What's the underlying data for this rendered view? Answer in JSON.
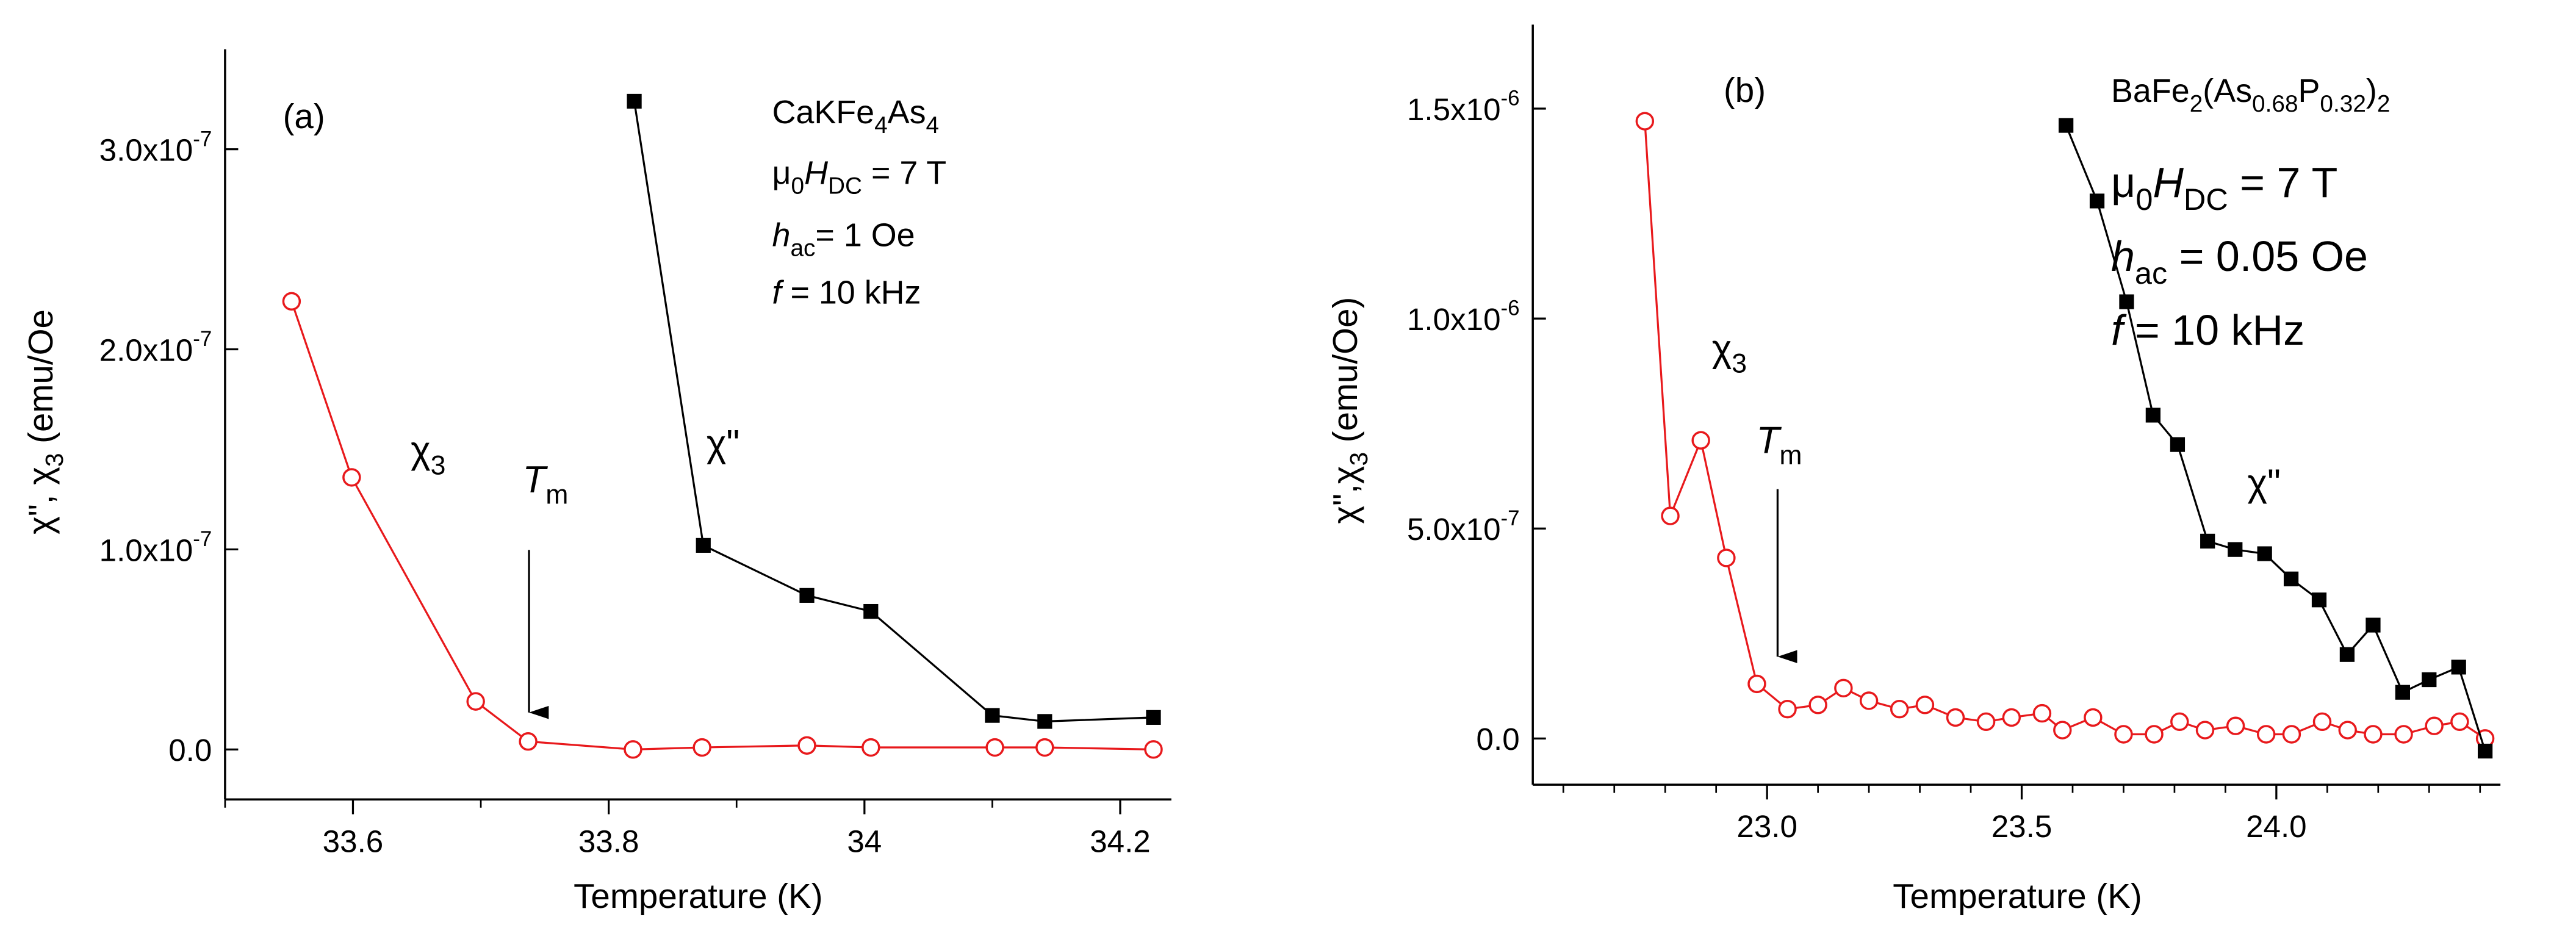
{
  "chart_data": [
    {
      "type": "line",
      "title": "(a)",
      "xlabel": "Temperature (K)",
      "ylabel": [
        {
          "t": "χ\", χ"
        },
        {
          "t": "3",
          "sub": true
        },
        {
          "t": " (emu/Oe"
        }
      ],
      "xlim": [
        33.5,
        34.24
      ],
      "xticks": [
        33.6,
        33.8,
        34.0,
        34.2
      ],
      "xminorticks": [
        33.5,
        33.7,
        33.9,
        34.1
      ],
      "ylim": [
        -2.5e-08,
        3.5e-07
      ],
      "yticks": [
        {
          "value": 0,
          "label": "0.0"
        },
        {
          "value": 1e-07,
          "label": "1.0x10-7"
        },
        {
          "value": 2e-07,
          "label": "2.0x10-7"
        },
        {
          "value": 3e-07,
          "label": "3.0x10-7"
        }
      ],
      "series": [
        {
          "name": "χ3",
          "color": "#e8191c",
          "marker": "open-circle",
          "x": [
            33.552,
            33.599,
            33.696,
            33.737,
            33.819,
            33.873,
            33.955,
            34.005,
            34.102,
            34.141,
            34.226
          ],
          "values": [
            2.24e-07,
            1.36e-07,
            2.4e-08,
            4e-09,
            0,
            1e-09,
            2e-09,
            1e-09,
            1e-09,
            1e-09,
            0
          ]
        },
        {
          "name": "χ\"",
          "color": "#000000",
          "marker": "filled-square",
          "x": [
            33.82,
            33.874,
            33.955,
            34.005,
            34.1,
            34.141,
            34.226
          ],
          "values": [
            3.24e-07,
            1.02e-07,
            7.7e-08,
            6.9e-08,
            1.7e-08,
            1.4e-08,
            1.6e-08
          ]
        }
      ],
      "annotations": [
        [
          {
            "t": "CaKFe"
          },
          {
            "t": "4",
            "sub": true
          },
          {
            "t": "As"
          },
          {
            "t": "4",
            "sub": true
          }
        ],
        [
          {
            "t": "μ"
          },
          {
            "t": "0",
            "sub": true
          },
          {
            "t": "H",
            "it": true
          },
          {
            "t": "DC",
            "sub": true
          },
          {
            "t": " = 7 T"
          }
        ],
        [
          {
            "t": "h",
            "it": true
          },
          {
            "t": "ac",
            "sub": true
          },
          {
            "t": "= 1 Oe"
          }
        ],
        [
          {
            "t": "f",
            "it": true
          },
          {
            "t": " = 10 kHz"
          }
        ]
      ],
      "series_labels": [
        [
          {
            "t": "χ"
          },
          {
            "t": "3",
            "sub": true
          }
        ],
        [
          {
            "t": "χ\""
          }
        ]
      ],
      "marker_label": [
        {
          "t": "T",
          "it": true
        },
        {
          "t": "m",
          "sub": true
        }
      ]
    },
    {
      "type": "line",
      "title": "(b)",
      "xlabel": "Temperature (K)",
      "ylabel": [
        {
          "t": "χ\",χ"
        },
        {
          "t": "3",
          "sub": true
        },
        {
          "t": " (emu/Oe)"
        }
      ],
      "xlim": [
        22.54,
        24.44
      ],
      "xticks": [
        {
          "value": 23,
          "label": "23.0"
        },
        23.5,
        {
          "value": 24,
          "label": "24.0"
        }
      ],
      "xminorticks": [
        22.6,
        22.7,
        22.8,
        22.9,
        23.1,
        23.2,
        23.3,
        23.4,
        23.6,
        23.7,
        23.8,
        23.9,
        24.1,
        24.2,
        24.3,
        24.4
      ],
      "ylim": [
        -1.1e-07,
        1.7e-06
      ],
      "yticks": [
        {
          "value": 0,
          "label": "0.0"
        },
        {
          "value": 5e-07,
          "label": "5.0x10-7"
        },
        {
          "value": 1e-06,
          "label": "1.0x10-6"
        },
        {
          "value": 1.5e-06,
          "label": "1.5x10-6"
        }
      ],
      "series": [
        {
          "name": "χ3",
          "color": "#e8191c",
          "marker": "open-circle",
          "x": [
            22.76,
            22.81,
            22.87,
            22.92,
            22.98,
            23.04,
            23.1,
            23.15,
            23.2,
            23.26,
            23.31,
            23.37,
            23.43,
            23.48,
            23.54,
            23.58,
            23.64,
            23.7,
            23.76,
            23.81,
            23.86,
            23.92,
            23.98,
            24.03,
            24.09,
            24.14,
            24.19,
            24.25,
            24.31,
            24.36,
            24.41
          ],
          "values": [
            1.47e-06,
            5.3e-07,
            7.1e-07,
            4.3e-07,
            1.3e-07,
            7e-08,
            8e-08,
            1.2e-07,
            9e-08,
            7e-08,
            8e-08,
            5e-08,
            4e-08,
            5e-08,
            6e-08,
            2e-08,
            5e-08,
            1e-08,
            1e-08,
            4e-08,
            2e-08,
            3e-08,
            1e-08,
            1e-08,
            4e-08,
            2e-08,
            1e-08,
            1e-08,
            3e-08,
            4e-08,
            0
          ]
        },
        {
          "name": "χ\"",
          "color": "#000000",
          "marker": "filled-square",
          "x": [
            23.587,
            23.648,
            23.706,
            23.758,
            23.806,
            23.865,
            23.919,
            23.977,
            24.029,
            24.084,
            24.139,
            24.19,
            24.248,
            24.3,
            24.358,
            24.41
          ],
          "values": [
            1.46e-06,
            1.28e-06,
            1.04e-06,
            7.7e-07,
            7e-07,
            4.7e-07,
            4.5e-07,
            4.4e-07,
            3.8e-07,
            3.3e-07,
            2e-07,
            2.7e-07,
            1.1e-07,
            1.4e-07,
            1.7e-07,
            -3e-08
          ]
        }
      ],
      "annotations": [
        [
          {
            "t": "BaFe"
          },
          {
            "t": "2",
            "sub": true
          },
          {
            "t": "(As"
          },
          {
            "t": "0.68",
            "sub": true
          },
          {
            "t": "P"
          },
          {
            "t": "0.32",
            "sub": true
          },
          {
            "t": ")"
          },
          {
            "t": "2",
            "sub": true
          }
        ],
        [
          {
            "t": "μ"
          },
          {
            "t": "0",
            "sub": true
          },
          {
            "t": "H",
            "it": true
          },
          {
            "t": "DC",
            "sub": true
          },
          {
            "t": " = 7 T"
          }
        ],
        [
          {
            "t": "h",
            "it": true
          },
          {
            "t": "ac",
            "sub": true
          },
          {
            "t": " = 0.05 Oe"
          }
        ],
        [
          {
            "t": "f",
            "it": true
          },
          {
            "t": " = 10 kHz"
          }
        ]
      ],
      "series_labels": [
        [
          {
            "t": "χ"
          },
          {
            "t": "3",
            "sub": true
          }
        ],
        [
          {
            "t": "χ\""
          }
        ]
      ],
      "marker_label": [
        {
          "t": "T",
          "it": true
        },
        {
          "t": "m",
          "sub": true
        }
      ]
    }
  ]
}
